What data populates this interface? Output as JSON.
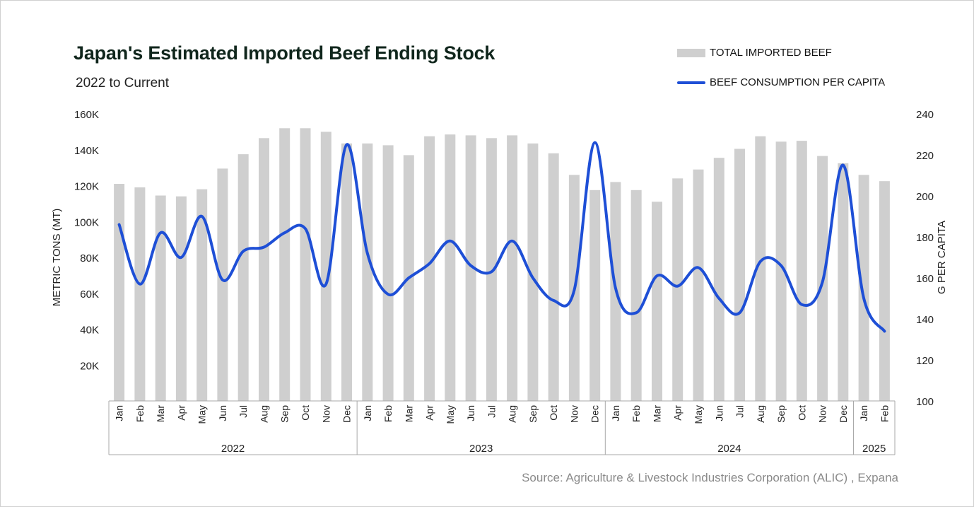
{
  "title": "Japan's Estimated Imported Beef Ending Stock",
  "subtitle": "2022 to Current",
  "source": "Source: Agriculture & Livestock Industries Corporation (ALIC) , Expana",
  "legend": {
    "bar_label": "TOTAL IMPORTED BEEF",
    "line_label": "BEEF CONSUMPTION PER CAPITA"
  },
  "colors": {
    "bar": "#cfcfcf",
    "line": "#1e4fd6",
    "title": "#10261c"
  },
  "chart_data": {
    "type": "bar",
    "categories": [
      "Jan",
      "Feb",
      "Mar",
      "Apr",
      "May",
      "Jun",
      "Jul",
      "Aug",
      "Sep",
      "Oct",
      "Nov",
      "Dec",
      "Jan",
      "Feb",
      "Mar",
      "Apr",
      "May",
      "Jun",
      "Jul",
      "Aug",
      "Sep",
      "Oct",
      "Nov",
      "Dec",
      "Jan",
      "Feb",
      "Mar",
      "Apr",
      "May",
      "Jun",
      "Jul",
      "Aug",
      "Sep",
      "Oct",
      "Nov",
      "Dec",
      "Jan",
      "Feb"
    ],
    "groups": [
      {
        "label": "2022",
        "count": 12
      },
      {
        "label": "2023",
        "count": 12
      },
      {
        "label": "2024",
        "count": 12
      },
      {
        "label": "2025",
        "count": 2
      }
    ],
    "series": [
      {
        "name": "TOTAL IMPORTED BEEF",
        "type": "bar",
        "axis": "left",
        "values": [
          121000,
          119000,
          114500,
          114000,
          118000,
          129500,
          137500,
          146500,
          152000,
          152000,
          150000,
          143500,
          143500,
          142500,
          137000,
          147500,
          148500,
          148000,
          146500,
          148000,
          143500,
          138000,
          126000,
          117500,
          122000,
          117500,
          111000,
          124000,
          129000,
          135500,
          140500,
          147500,
          144500,
          145000,
          136500,
          132500,
          126000,
          122500
        ]
      },
      {
        "name": "BEEF CONSUMPTION PER CAPITA",
        "type": "line",
        "axis": "right",
        "values": [
          186,
          157,
          182,
          170,
          190,
          159,
          173,
          175,
          182,
          184,
          157,
          225,
          172,
          152,
          160,
          167,
          178,
          166,
          163,
          178,
          160,
          149,
          154,
          226,
          155,
          143,
          161,
          156,
          165,
          150,
          143,
          168,
          166,
          147,
          158,
          215,
          150,
          134
        ]
      }
    ],
    "ylabel": "METRIC TONS (MT)",
    "y2label": "G PER CAPITA",
    "ylim": [
      0,
      160000
    ],
    "y2lim": [
      100,
      240
    ],
    "yticks": [
      20000,
      40000,
      60000,
      80000,
      100000,
      120000,
      140000,
      160000
    ],
    "ytick_labels": [
      "20K",
      "40K",
      "60K",
      "80K",
      "100K",
      "120K",
      "140K",
      "160K"
    ],
    "y2ticks": [
      100,
      120,
      140,
      160,
      180,
      200,
      220,
      240
    ],
    "grid": false,
    "legend_position": "top-right"
  }
}
